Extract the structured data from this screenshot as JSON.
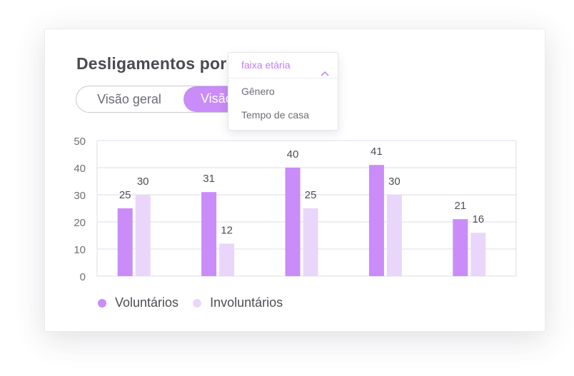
{
  "header": {
    "title": "Desligamentos por:"
  },
  "view_toggle": {
    "options": [
      "Visão geral",
      "Visão"
    ],
    "selected_index": 1
  },
  "dropdown": {
    "selected": "faixa etária",
    "icon": "chevron-up-icon",
    "options": [
      "Gênero",
      "Tempo de casa"
    ]
  },
  "colors": {
    "accent": "#c98cf8",
    "series_voluntarios": "#c98cf8",
    "series_involuntarios": "#ead6fb",
    "grid": "#dedee8"
  },
  "chart_data": {
    "type": "bar",
    "categories": [
      "",
      "",
      "",
      "",
      ""
    ],
    "series": [
      {
        "name": "Voluntários",
        "values": [
          25,
          31,
          40,
          41,
          21
        ]
      },
      {
        "name": "Involuntários",
        "values": [
          30,
          12,
          25,
          30,
          16
        ]
      }
    ],
    "ylim": [
      0,
      50
    ],
    "yticks": [
      0,
      10,
      20,
      30,
      40,
      50
    ],
    "grid": true,
    "data_labels": true,
    "legend_position": "bottom-left"
  }
}
